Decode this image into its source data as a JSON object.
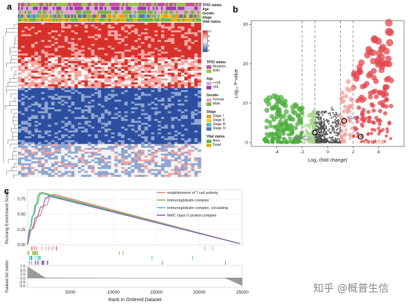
{
  "panel_a": {
    "letter": "a",
    "annotation_tracks": [
      "TP53 status",
      "Age",
      "Gender",
      "Stage",
      "Vital status"
    ],
    "colorbar_ticks": [
      "10",
      "8",
      "6",
      "4",
      "2"
    ],
    "colorbar_colors": [
      "#d7302b",
      "#f4a5a0",
      "#f4f4f4",
      "#8ea6d2",
      "#2c4ea0"
    ],
    "legends": [
      {
        "title": "TP53 status",
        "items": [
          {
            "label": "Mutation",
            "color": "#c74da4"
          },
          {
            "label": "Wild",
            "color": "#9fc14b"
          }
        ]
      },
      {
        "title": "Age",
        "items": [
          {
            "label": "<=65",
            "color": "#d9a8d9"
          },
          {
            "label": ">65",
            "color": "#9c3ea6"
          }
        ]
      },
      {
        "title": "Gender",
        "items": [
          {
            "label": "Female",
            "color": "#e3a6c9"
          },
          {
            "label": "Male",
            "color": "#79b443"
          }
        ]
      },
      {
        "title": "Stage",
        "items": [
          {
            "label": "Stage I",
            "color": "#e0a020"
          },
          {
            "label": "Stage II",
            "color": "#e8c83a"
          },
          {
            "label": "Stage III",
            "color": "#59b5c4"
          },
          {
            "label": "Stage IV",
            "color": "#5b6fb5"
          }
        ]
      },
      {
        "title": "Vital status",
        "items": [
          {
            "label": "Alive",
            "color": "#67b84a"
          },
          {
            "label": "Dead",
            "color": "#e0b020"
          }
        ]
      }
    ]
  },
  "panel_b": {
    "letter": "b",
    "chart_data": {
      "type": "scatter",
      "xlabel": "Log₂ (fold change)",
      "ylabel": "Log₁₀ P-value",
      "xlim": [
        -6,
        6
      ],
      "ylim": [
        -1,
        31
      ],
      "xticks": [
        "-4",
        "-2",
        "0",
        "2",
        "4"
      ],
      "yticks": [
        "0",
        "10",
        "20",
        "30"
      ],
      "threshold_lines_x": [
        -2,
        -1,
        1,
        2
      ],
      "colors": {
        "down": "#4caf3c",
        "down_light": "#a6d88a",
        "neutral": "#4d4d4d",
        "up_light": "#f3a0a0",
        "up": "#e2454c"
      },
      "highlighted_genes": [
        {
          "label": "KLK6",
          "x": 1.3,
          "y": 5.5,
          "color": "#7a5a9a"
        },
        {
          "label": "MUC2L",
          "x": -1.0,
          "y": 2.5,
          "color": "#7a5a9a"
        },
        {
          "label": "CSN1S1",
          "x": 2.6,
          "y": 1.5,
          "color": "#d2442c"
        }
      ]
    }
  },
  "panel_c": {
    "letter": "c",
    "chart_data": {
      "type": "line",
      "ylabel_top": "Running Enrichment Score",
      "ylabel_bottom": "Ranked list metric",
      "xlabel": "Rank in Ordered Dataset",
      "xlim": [
        0,
        25000
      ],
      "xticks": [
        "5000",
        "10000",
        "15000",
        "20000",
        "25000"
      ],
      "yticks_top": [
        "0.75",
        "0.50",
        "0.25",
        "0.00"
      ],
      "yticks_bottom": [
        "7.5",
        "5.0",
        "2.5",
        "0.0",
        "-2.5",
        "-5.0"
      ],
      "ylim_top": [
        0,
        0.9
      ],
      "ylim_bottom": [
        -6,
        8
      ],
      "series": [
        {
          "name": "establishment of T cell polarity",
          "color": "#e8827a",
          "peak_x": 3000,
          "peak_y": 0.83
        },
        {
          "name": "immunoglobulin complex",
          "color": "#8fb43c",
          "peak_x": 1600,
          "peak_y": 0.86
        },
        {
          "name": "immunoglobulin complex, circulating",
          "color": "#3bbfb6",
          "peak_x": 1400,
          "peak_y": 0.85
        },
        {
          "name": "MHC class II protein complex",
          "color": "#8a62b0",
          "peak_x": 2400,
          "peak_y": 0.8
        }
      ]
    }
  },
  "watermark": {
    "text": "知乎 @概普生信"
  }
}
